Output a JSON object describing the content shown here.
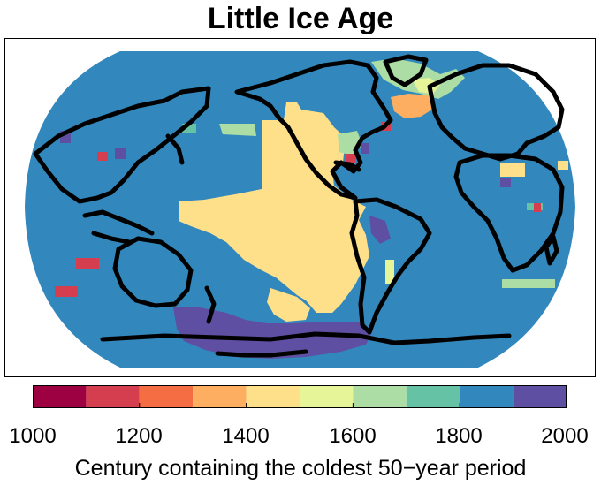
{
  "title": "Little Ice Age",
  "colorbar": {
    "label": "Century containing the coldest 50−year period",
    "tick_labels": [
      "1000",
      "1200",
      "1400",
      "1600",
      "1800",
      "2000"
    ],
    "bins": [
      {
        "from": 1000,
        "to": 1100,
        "color": "#9e0142"
      },
      {
        "from": 1100,
        "to": 1200,
        "color": "#d53e4f"
      },
      {
        "from": 1200,
        "to": 1300,
        "color": "#f46d43"
      },
      {
        "from": 1300,
        "to": 1400,
        "color": "#fdae61"
      },
      {
        "from": 1400,
        "to": 1500,
        "color": "#fee08b"
      },
      {
        "from": 1500,
        "to": 1600,
        "color": "#e6f598"
      },
      {
        "from": 1600,
        "to": 1700,
        "color": "#abdda4"
      },
      {
        "from": 1700,
        "to": 1800,
        "color": "#66c2a5"
      },
      {
        "from": 1800,
        "to": 1900,
        "color": "#3288bd"
      },
      {
        "from": 1900,
        "to": 2000,
        "color": "#5e4fa2"
      }
    ]
  },
  "map": {
    "projection": "Robinson, Pacific-centered",
    "background_century": "1800",
    "dominant_color": "#3288bd",
    "coastline_color": "#000000"
  }
}
